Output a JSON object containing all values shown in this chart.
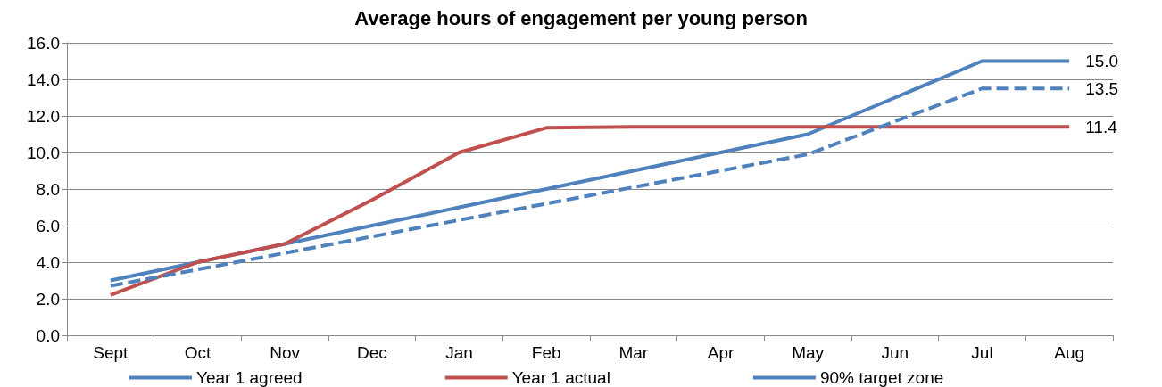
{
  "chart_data": {
    "type": "line",
    "title": "Average hours of engagement per young person",
    "categories": [
      "Sept",
      "Oct",
      "Nov",
      "Dec",
      "Jan",
      "Feb",
      "Mar",
      "Apr",
      "May",
      "Jun",
      "Jul",
      "Aug"
    ],
    "series": [
      {
        "name": "Year 1 agreed",
        "color": "#4f81bd",
        "values": [
          3.0,
          4.0,
          5.0,
          6.0,
          7.0,
          8.0,
          9.0,
          10.0,
          11.0,
          13.0,
          15.0,
          15.0
        ],
        "value_labels": [
          null,
          null,
          null,
          null,
          null,
          null,
          null,
          null,
          null,
          null,
          null,
          "15.0"
        ]
      },
      {
        "name": "Year 1 actual",
        "color": "#c0504d",
        "values": [
          2.2,
          4.0,
          5.0,
          7.4,
          10.0,
          11.35,
          11.4,
          11.4,
          11.4,
          11.4,
          11.4,
          11.4
        ],
        "value_labels": [
          null,
          null,
          null,
          null,
          null,
          null,
          null,
          null,
          null,
          null,
          null,
          "11.4"
        ]
      },
      {
        "name": "90% target zone",
        "color": "#4f81bd",
        "line_style": "dashed",
        "values": [
          2.7,
          3.6,
          4.5,
          5.4,
          6.3,
          7.2,
          8.1,
          9.0,
          9.9,
          11.7,
          13.5,
          13.5
        ],
        "value_labels": [
          null,
          null,
          null,
          null,
          null,
          null,
          null,
          null,
          null,
          null,
          null,
          "13.5"
        ]
      }
    ],
    "ylim": [
      0,
      16
    ],
    "yticks": [
      {
        "value": 0,
        "label": "0.0"
      },
      {
        "value": 2,
        "label": "2.0"
      },
      {
        "value": 4,
        "label": "4.0"
      },
      {
        "value": 6,
        "label": "6.0"
      },
      {
        "value": 8,
        "label": "8.0"
      },
      {
        "value": 10,
        "label": "10.0"
      },
      {
        "value": 12,
        "label": "12.0"
      },
      {
        "value": 14,
        "label": "14.0"
      },
      {
        "value": 16,
        "label": "16.0"
      }
    ],
    "grid": "y",
    "legend": "bottom",
    "marker": "none",
    "line_style": "solid"
  }
}
